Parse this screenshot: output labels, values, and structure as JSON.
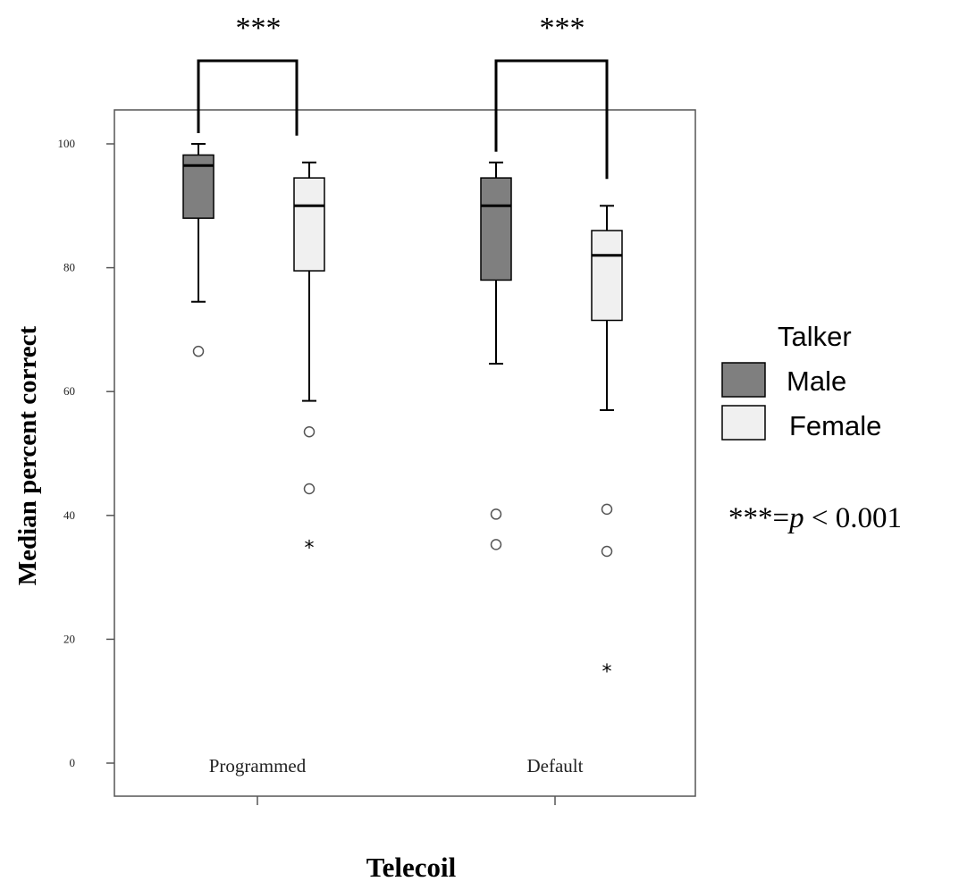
{
  "chart_data": {
    "type": "box",
    "xlabel": "Telecoil",
    "ylabel": "Median percent correct",
    "categories": [
      "Programmed",
      "Default"
    ],
    "y_ticks": [
      0,
      20,
      40,
      60,
      80,
      100
    ],
    "ylim": [
      -5,
      106
    ],
    "grid": false,
    "legend": {
      "title": "Talker",
      "placement": "right",
      "entries": [
        {
          "name": "Male",
          "color": "#7f7f7f"
        },
        {
          "name": "Female",
          "color": "#f0f0f0"
        }
      ]
    },
    "series": [
      {
        "name": "Male",
        "color": "#7f7f7f",
        "boxes": [
          {
            "category": "Programmed",
            "whisker_low": 74.5,
            "q1": 88,
            "median": 96.5,
            "q3": 98.2,
            "whisker_high": 100,
            "outliers": [
              66.5
            ],
            "extremes": []
          },
          {
            "category": "Default",
            "whisker_low": 64.5,
            "q1": 78,
            "median": 90,
            "q3": 94.5,
            "whisker_high": 97,
            "outliers": [
              40.2,
              35.3
            ],
            "extremes": []
          }
        ]
      },
      {
        "name": "Female",
        "color": "#f0f0f0",
        "boxes": [
          {
            "category": "Programmed",
            "whisker_low": 58.5,
            "q1": 79.5,
            "median": 90,
            "q3": 94.5,
            "whisker_high": 97,
            "outliers": [
              53.5,
              44.3
            ],
            "extremes": [
              35
            ]
          },
          {
            "category": "Default",
            "whisker_low": 57,
            "q1": 71.5,
            "median": 82,
            "q3": 86,
            "whisker_high": 90,
            "outliers": [
              41,
              34.2
            ],
            "extremes": [
              15
            ]
          }
        ]
      }
    ],
    "significance": [
      {
        "category": "Programmed",
        "label": "***"
      },
      {
        "category": "Default",
        "label": "***"
      }
    ],
    "annotation": {
      "stars": "***=",
      "p": "p",
      "rest": " < 0.001"
    }
  }
}
